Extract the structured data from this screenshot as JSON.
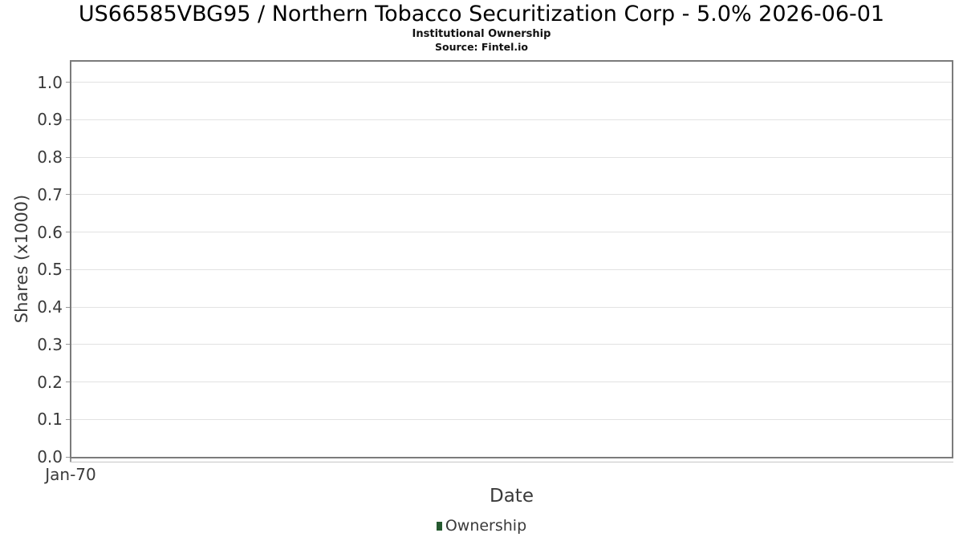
{
  "chart_data": {
    "type": "line",
    "title": "US66585VBG95 / Northern Tobacco Securitization Corp - 5.0% 2026-06-01",
    "subtitle": "Institutional Ownership",
    "source_note": "Source: Fintel.io",
    "xlabel": "Date",
    "ylabel": "Shares (x1000)",
    "x_tick_labels": [
      "Jan-70"
    ],
    "y_ticks": [
      0.0,
      0.1,
      0.2,
      0.3,
      0.4,
      0.5,
      0.6,
      0.7,
      0.8,
      0.9,
      1.0
    ],
    "y_tick_labels": [
      "0.0",
      "0.1",
      "0.2",
      "0.3",
      "0.4",
      "0.5",
      "0.6",
      "0.7",
      "0.8",
      "0.9",
      "1.0"
    ],
    "ylim": [
      0,
      1.055
    ],
    "grid": true,
    "legend": {
      "position": "bottom",
      "entries": [
        {
          "label": "Ownership",
          "color": "#265a30"
        }
      ]
    },
    "series": [
      {
        "name": "Ownership",
        "color": "#265a30",
        "x": [],
        "values": []
      }
    ]
  },
  "style": {
    "accent_green": "#265a30",
    "grid_color": "#e2e2e2",
    "plot_border_color": "#7b7b7b",
    "tick_color": "#989898",
    "axis_subline_color": "#c6c6c6",
    "axis_text_color": "#3a3a3a",
    "title_color": "#000000",
    "background": "#ffffff"
  }
}
